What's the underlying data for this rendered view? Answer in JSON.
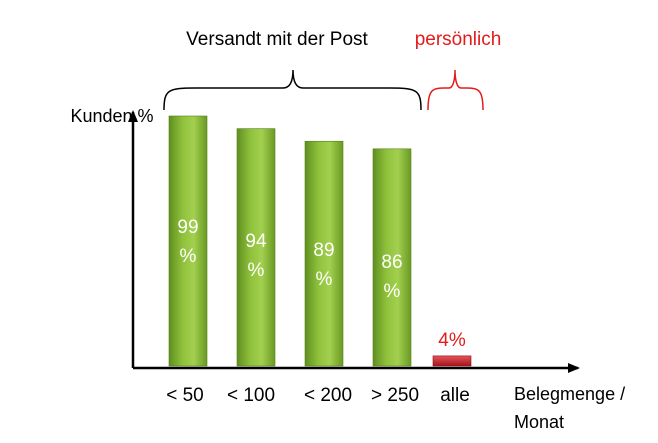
{
  "chart_data": {
    "type": "bar",
    "title": "",
    "ylabel": "Kunden %",
    "xlabel_line1": "Belegmenge /",
    "xlabel_line2": "Monat",
    "categories": [
      "< 50",
      "< 100",
      "< 200",
      "> 250",
      "alle"
    ],
    "values": [
      99,
      94,
      89,
      86,
      4
    ],
    "data_labels": [
      [
        "99",
        "%"
      ],
      [
        "94",
        "%"
      ],
      [
        "89",
        "%"
      ],
      [
        "86",
        "%"
      ],
      [
        "4%"
      ]
    ],
    "groups": [
      {
        "label": "Versandt mit der Post",
        "categories": [
          "< 50",
          "< 100",
          "< 200",
          "> 250"
        ],
        "color": "#000000"
      },
      {
        "label": "persönlich",
        "categories": [
          "alle"
        ],
        "color": "#e31b1b"
      }
    ],
    "colors": {
      "post_bar": "#7fb030",
      "personal_bar": "#c8232b",
      "personal_text": "#e31b1b",
      "label_inside": "#ffffff"
    },
    "ylim": [
      0,
      110
    ],
    "grid": false,
    "legend": "none"
  }
}
